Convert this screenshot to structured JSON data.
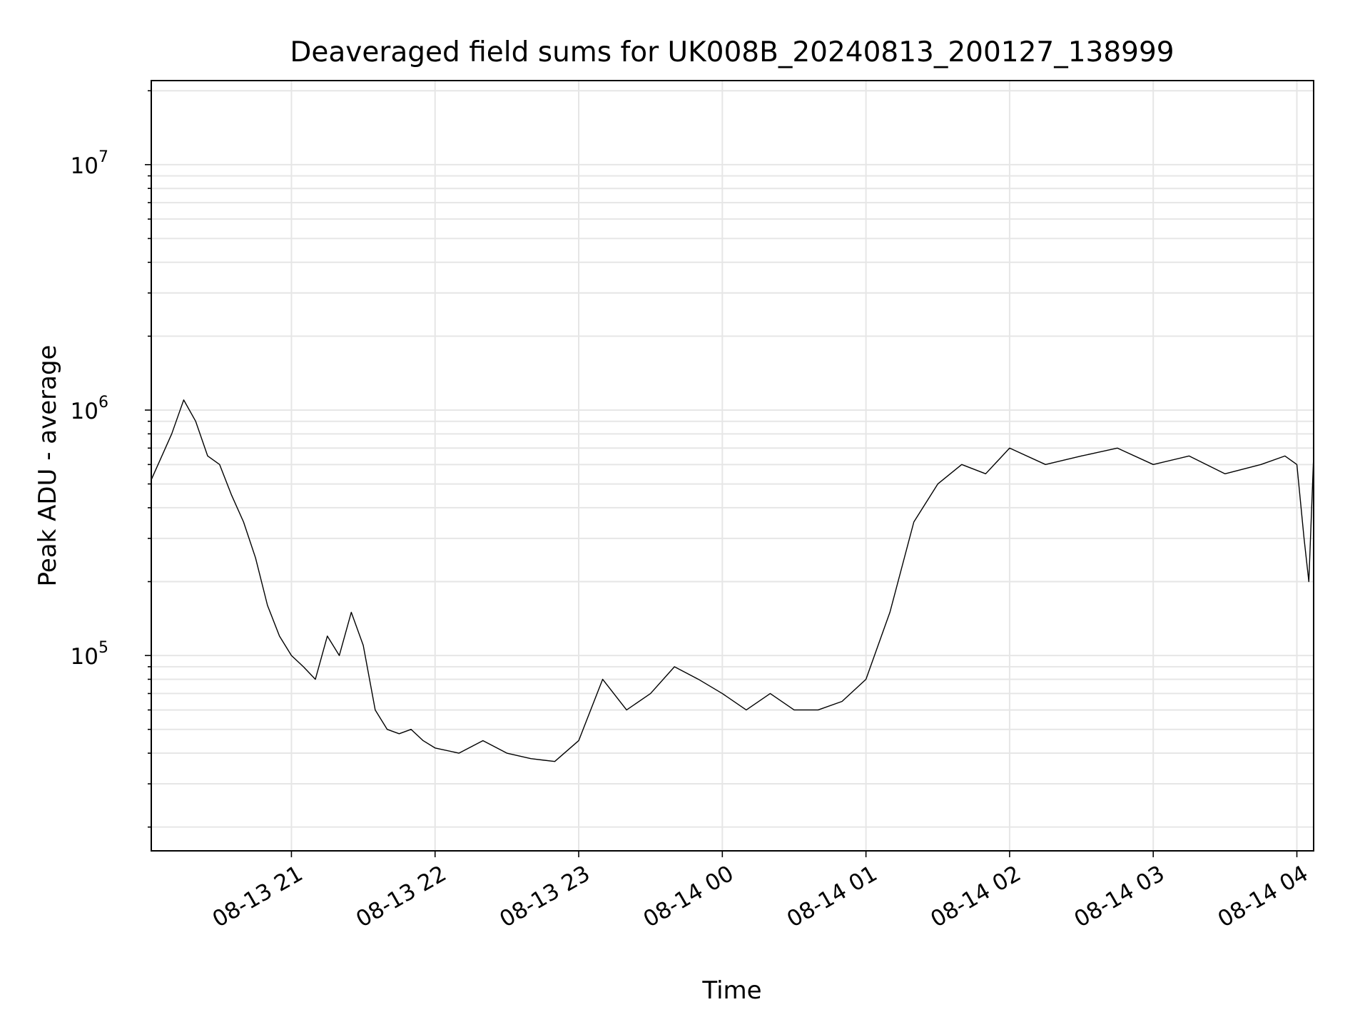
{
  "chart_data": {
    "type": "line",
    "title": "Deaveraged field sums for UK008B_20240813_200127_138999",
    "xlabel": "Time",
    "ylabel": "Peak ADU - average",
    "yscale": "log",
    "ylim": [
      16000,
      22000000
    ],
    "xlim": [
      "2024-08-13 20:01:27",
      "2024-08-14 04:07:00"
    ],
    "grid": true,
    "line_color": "#000000",
    "grid_color": "#e6e6e6",
    "x_ticks": [
      {
        "t": "2024-08-13 21:00",
        "label": "08-13 21"
      },
      {
        "t": "2024-08-13 22:00",
        "label": "08-13 22"
      },
      {
        "t": "2024-08-13 23:00",
        "label": "08-13 23"
      },
      {
        "t": "2024-08-14 00:00",
        "label": "08-14 00"
      },
      {
        "t": "2024-08-14 01:00",
        "label": "08-14 01"
      },
      {
        "t": "2024-08-14 02:00",
        "label": "08-14 02"
      },
      {
        "t": "2024-08-14 03:00",
        "label": "08-14 03"
      },
      {
        "t": "2024-08-14 04:00",
        "label": "08-14 04"
      }
    ],
    "y_ticks": [
      {
        "value": 100000,
        "base": "10",
        "exp": "5"
      },
      {
        "value": 1000000,
        "base": "10",
        "exp": "6"
      },
      {
        "value": 10000000,
        "base": "10",
        "exp": "7"
      }
    ],
    "series": [
      {
        "values": [
          [
            "2024-08-13 20:01:27",
            520000
          ],
          [
            "2024-08-13 20:10",
            800000
          ],
          [
            "2024-08-13 20:15",
            1100000
          ],
          [
            "2024-08-13 20:20",
            900000
          ],
          [
            "2024-08-13 20:25",
            650000
          ],
          [
            "2024-08-13 20:30",
            600000
          ],
          [
            "2024-08-13 20:35",
            450000
          ],
          [
            "2024-08-13 20:40",
            350000
          ],
          [
            "2024-08-13 20:45",
            250000
          ],
          [
            "2024-08-13 20:50",
            160000
          ],
          [
            "2024-08-13 20:55",
            120000
          ],
          [
            "2024-08-13 21:00",
            100000
          ],
          [
            "2024-08-13 21:05",
            90000
          ],
          [
            "2024-08-13 21:10",
            80000
          ],
          [
            "2024-08-13 21:15",
            120000
          ],
          [
            "2024-08-13 21:20",
            100000
          ],
          [
            "2024-08-13 21:25",
            150000
          ],
          [
            "2024-08-13 21:30",
            110000
          ],
          [
            "2024-08-13 21:35",
            60000
          ],
          [
            "2024-08-13 21:40",
            50000
          ],
          [
            "2024-08-13 21:45",
            48000
          ],
          [
            "2024-08-13 21:50",
            50000
          ],
          [
            "2024-08-13 21:55",
            45000
          ],
          [
            "2024-08-13 22:00",
            42000
          ],
          [
            "2024-08-13 22:10",
            40000
          ],
          [
            "2024-08-13 22:20",
            45000
          ],
          [
            "2024-08-13 22:30",
            40000
          ],
          [
            "2024-08-13 22:40",
            38000
          ],
          [
            "2024-08-13 22:50",
            37000
          ],
          [
            "2024-08-13 23:00",
            45000
          ],
          [
            "2024-08-13 23:10",
            80000
          ],
          [
            "2024-08-13 23:20",
            60000
          ],
          [
            "2024-08-13 23:30",
            70000
          ],
          [
            "2024-08-13 23:40",
            90000
          ],
          [
            "2024-08-13 23:50",
            80000
          ],
          [
            "2024-08-14 00:00",
            70000
          ],
          [
            "2024-08-14 00:10",
            60000
          ],
          [
            "2024-08-14 00:20",
            70000
          ],
          [
            "2024-08-14 00:30",
            60000
          ],
          [
            "2024-08-14 00:40",
            60000
          ],
          [
            "2024-08-14 00:50",
            65000
          ],
          [
            "2024-08-14 01:00",
            80000
          ],
          [
            "2024-08-14 01:10",
            150000
          ],
          [
            "2024-08-14 01:20",
            350000
          ],
          [
            "2024-08-14 01:30",
            500000
          ],
          [
            "2024-08-14 01:40",
            600000
          ],
          [
            "2024-08-14 01:50",
            550000
          ],
          [
            "2024-08-14 02:00",
            700000
          ],
          [
            "2024-08-14 02:15",
            600000
          ],
          [
            "2024-08-14 02:30",
            650000
          ],
          [
            "2024-08-14 02:45",
            700000
          ],
          [
            "2024-08-14 03:00",
            600000
          ],
          [
            "2024-08-14 03:15",
            650000
          ],
          [
            "2024-08-14 03:30",
            550000
          ],
          [
            "2024-08-14 03:45",
            600000
          ],
          [
            "2024-08-14 03:55",
            650000
          ],
          [
            "2024-08-14 04:00",
            600000
          ],
          [
            "2024-08-14 04:03",
            300000
          ],
          [
            "2024-08-14 04:05",
            200000
          ],
          [
            "2024-08-14 04:07",
            650000
          ]
        ]
      }
    ]
  }
}
